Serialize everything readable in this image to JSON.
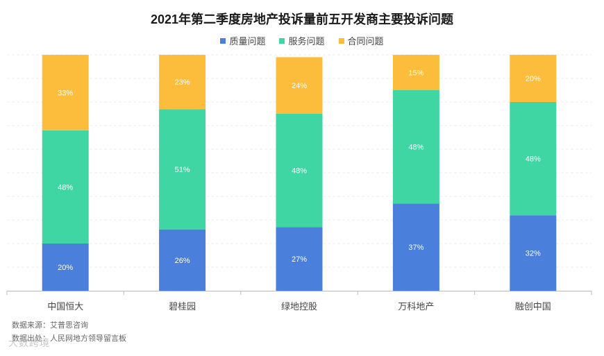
{
  "chart_data": {
    "type": "bar",
    "stacked": true,
    "title": "2021年第二季度房地产投诉量前五开发商主要投诉问题",
    "categories": [
      "中国恒大",
      "碧桂园",
      "绿地控股",
      "万科地产",
      "融创中国"
    ],
    "series": [
      {
        "name": "质量问题",
        "color": "#4a7fdc",
        "values": [
          20,
          26,
          27,
          37,
          32
        ]
      },
      {
        "name": "服务问题",
        "color": "#3fd6a4",
        "values": [
          48,
          51,
          48,
          48,
          48
        ]
      },
      {
        "name": "合同问题",
        "color": "#fcbd3c",
        "values": [
          33,
          23,
          24,
          15,
          20
        ]
      }
    ],
    "ylim": [
      0,
      100
    ],
    "value_suffix": "%",
    "grid": true,
    "legend": "top-center"
  },
  "notes": {
    "source": "数据来源：艾普思咨询",
    "origin": "数据出处：人民网地方领导留言板"
  },
  "watermark": {
    "text": "大数跨境"
  }
}
